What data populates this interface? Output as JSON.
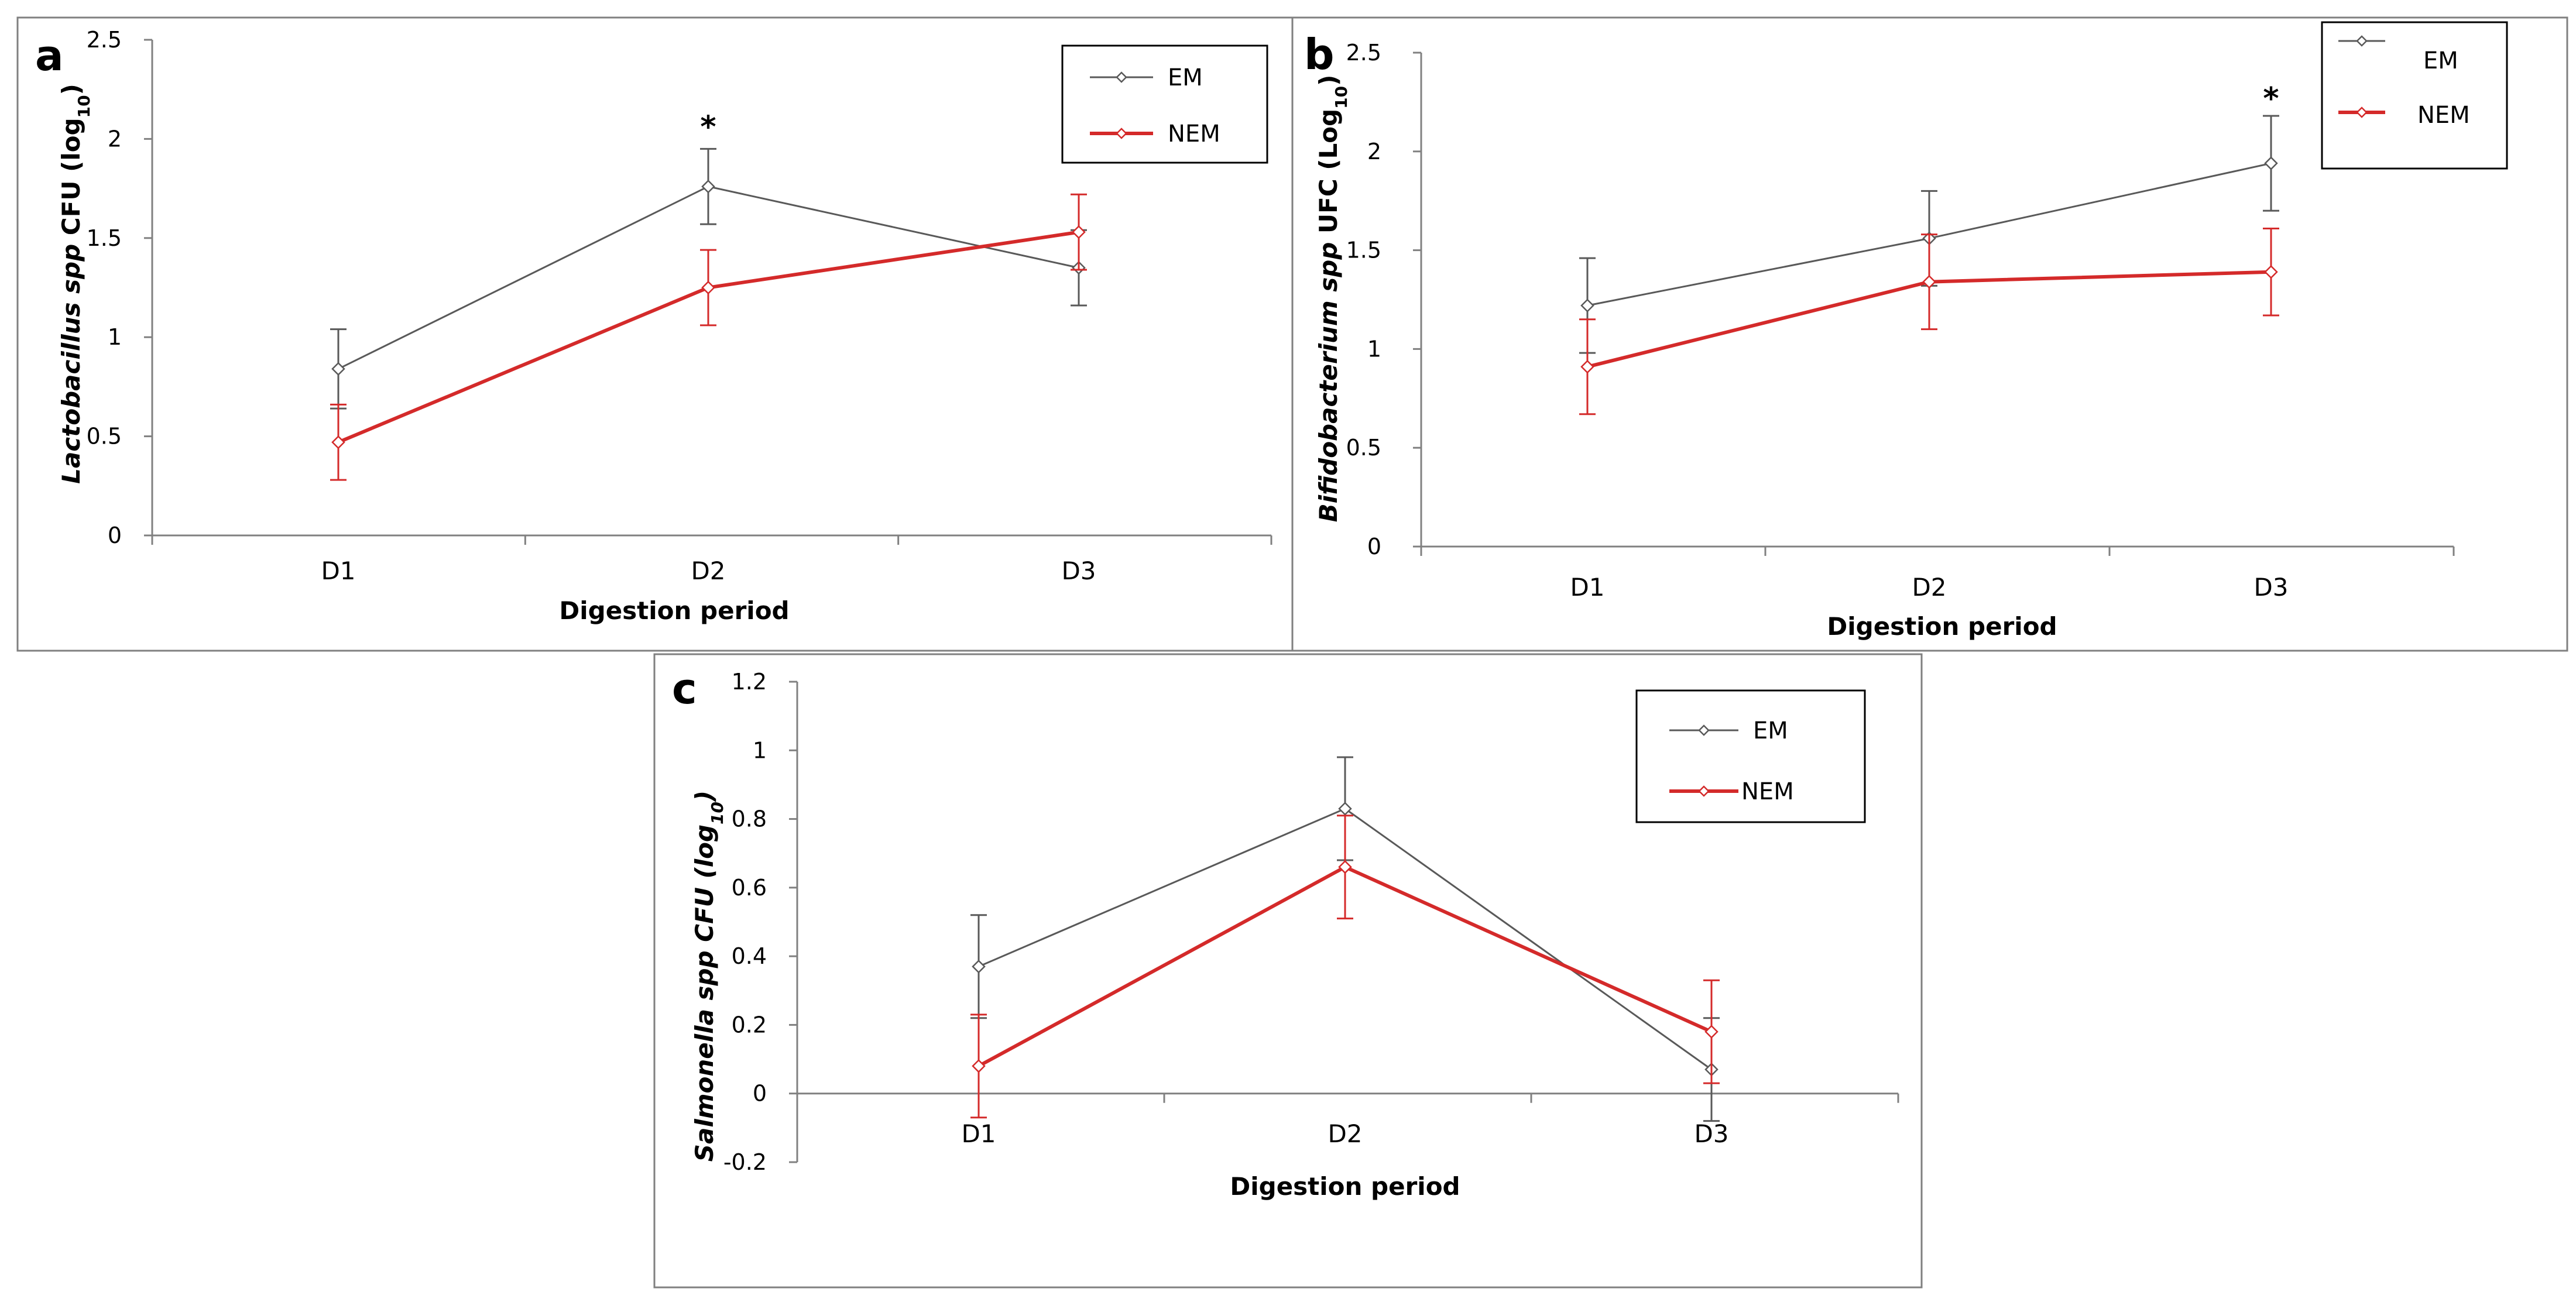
{
  "figure": {
    "panels": [
      "a",
      "b",
      "c"
    ]
  },
  "colors": {
    "em": "#595959",
    "nem": "#d42a2a",
    "frame": "#808080",
    "axis": "#808080"
  },
  "chart_data": [
    {
      "type": "line",
      "panel_letter": "a",
      "categories": [
        "D1",
        "D2",
        "D3"
      ],
      "series": [
        {
          "name": "EM",
          "values": [
            0.84,
            1.76,
            1.35
          ],
          "errors": [
            0.2,
            0.19,
            0.19
          ]
        },
        {
          "name": "NEM",
          "values": [
            0.47,
            1.25,
            1.53
          ],
          "errors": [
            0.19,
            0.19,
            0.19
          ]
        }
      ],
      "ylim": [
        0,
        2.5
      ],
      "yticks": [
        "0",
        "0.5",
        "1",
        "1.5",
        "2",
        "2.5"
      ],
      "ytick_values": [
        0,
        0.5,
        1,
        1.5,
        2,
        2.5
      ],
      "ylabel_main": "Lactobacillus spp",
      "ylabel_rest": " CFU (log",
      "ylabel_sub": "10",
      "ylabel_end": ")",
      "xlabel": "Digestion period",
      "annotations": [
        {
          "text": "*",
          "category_index": 1
        }
      ],
      "legend": {
        "position": "top-right",
        "entries": [
          "EM",
          "NEM"
        ]
      },
      "grid": false
    },
    {
      "type": "line",
      "panel_letter": "b",
      "categories": [
        "D1",
        "D2",
        "D3"
      ],
      "series": [
        {
          "name": "EM",
          "values": [
            1.22,
            1.56,
            1.94
          ],
          "errors": [
            0.24,
            0.24,
            0.24
          ]
        },
        {
          "name": "NEM",
          "values": [
            0.91,
            1.34,
            1.39
          ],
          "errors": [
            0.24,
            0.24,
            0.22
          ]
        }
      ],
      "ylim": [
        0,
        2.5
      ],
      "yticks": [
        "0",
        "0.5",
        "1",
        "1.5",
        "2",
        "2.5"
      ],
      "ytick_values": [
        0,
        0.5,
        1,
        1.5,
        2,
        2.5
      ],
      "ylabel_main": "Bifidobacterium spp",
      "ylabel_rest": " UFC (Log",
      "ylabel_sub": "10",
      "ylabel_end": ")",
      "xlabel": "Digestion period",
      "annotations": [
        {
          "text": "*",
          "category_index": 2
        }
      ],
      "legend": {
        "position": "top-right",
        "entries": [
          "EM",
          "NEM"
        ]
      },
      "grid": false
    },
    {
      "type": "line",
      "panel_letter": "c",
      "categories": [
        "D1",
        "D2",
        "D3"
      ],
      "series": [
        {
          "name": "EM",
          "values": [
            0.37,
            0.83,
            0.07
          ],
          "errors": [
            0.15,
            0.15,
            0.15
          ]
        },
        {
          "name": "NEM",
          "values": [
            0.08,
            0.66,
            0.18
          ],
          "errors": [
            0.15,
            0.15,
            0.15
          ]
        }
      ],
      "ylim": [
        -0.2,
        1.2
      ],
      "yticks": [
        "-0.2",
        "0",
        "0.2",
        "0.4",
        "0.6",
        "0.8",
        "1",
        "1.2"
      ],
      "ytick_values": [
        -0.2,
        0,
        0.2,
        0.4,
        0.6,
        0.8,
        1,
        1.2
      ],
      "ylabel_main": "Salmonella spp CFU (log",
      "ylabel_rest": "",
      "ylabel_sub": "10",
      "ylabel_end": ")",
      "xlabel": "Digestion period",
      "annotations": [],
      "legend": {
        "position": "top-right",
        "entries": [
          "EM",
          "NEM"
        ]
      },
      "grid": false
    }
  ]
}
